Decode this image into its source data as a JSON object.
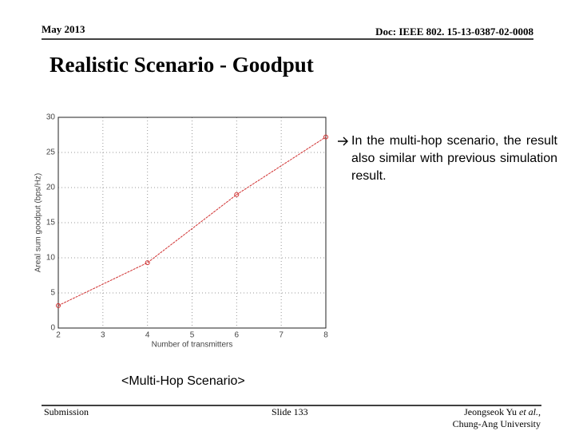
{
  "header": {
    "date": "May 2013",
    "doc": "Doc: IEEE 802. 15-13-0387-02-0008"
  },
  "title": "Realistic Scenario - Goodput",
  "chart_data": {
    "type": "line",
    "xlabel": "Number of transmitters",
    "ylabel": "Areal sum goodput (bps/Hz)",
    "x": [
      2,
      4,
      6,
      8
    ],
    "values": [
      3.2,
      9.3,
      19,
      27.2
    ],
    "color": "#d03030",
    "xlim": [
      2,
      8
    ],
    "xticks": [
      2,
      3,
      4,
      5,
      6,
      7,
      8
    ],
    "ylim": [
      0,
      30
    ],
    "yticks": [
      0,
      5,
      10,
      15,
      20,
      25,
      30
    ],
    "grid": true
  },
  "bullet": "In the multi-hop scenario, the result also similar with previous simulation result.",
  "caption": "<Multi-Hop Scenario>",
  "footer": {
    "left": "Submission",
    "center": "Slide 133",
    "author": "Jeongseok Yu",
    "etal": "et al.,",
    "affiliation": "Chung-Ang University"
  }
}
